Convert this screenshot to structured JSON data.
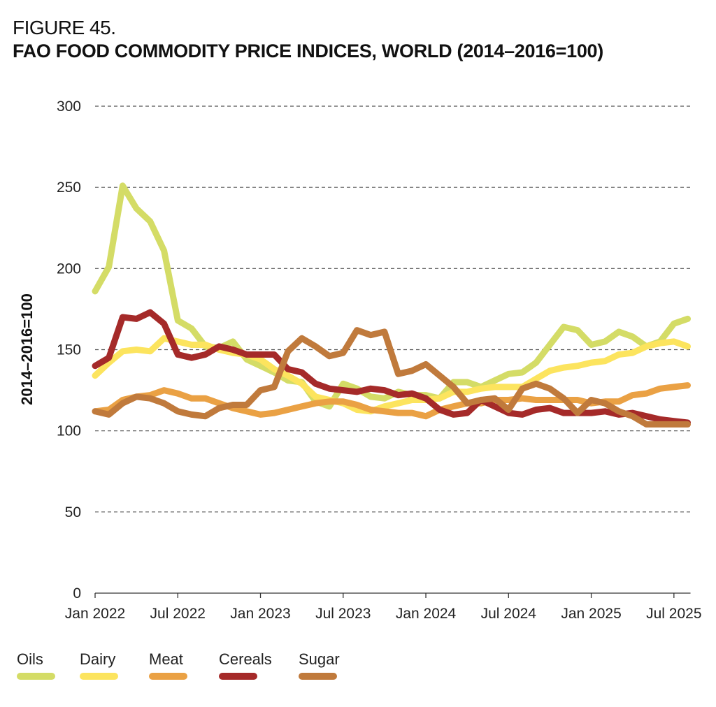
{
  "figure_label": "FIGURE 45.",
  "chart_data": {
    "type": "line",
    "title": "FAO FOOD COMMODITY PRICE INDICES, WORLD (2014–2016=100)",
    "xlabel": "",
    "ylabel": "2014–2016=100",
    "ylim": [
      0,
      300
    ],
    "yticks": [
      0,
      50,
      100,
      150,
      200,
      250,
      300
    ],
    "x_start": "Jan 2022",
    "x_end": "Aug 2025",
    "xtick_labels": [
      "Jan 2022",
      "Jul 2022",
      "Jan 2023",
      "Jul 2023",
      "Jan 2024",
      "Jul 2024",
      "Jan 2025",
      "Jul 2025"
    ],
    "grid": "horizontal dashed",
    "legend_position": "bottom",
    "series": [
      {
        "name": "Oils",
        "color": "#d4dc66",
        "values": [
          186,
          201,
          251,
          237,
          229,
          211,
          168,
          163,
          152,
          151,
          155,
          144,
          140,
          136,
          131,
          130,
          118,
          115,
          129,
          126,
          121,
          120,
          124,
          122,
          122,
          120,
          130,
          130,
          127,
          131,
          135,
          136,
          142,
          153,
          164,
          162,
          153,
          155,
          161,
          158,
          152,
          155,
          166,
          169
        ]
      },
      {
        "name": "Dairy",
        "color": "#fce45e",
        "values": [
          134,
          142,
          149,
          150,
          149,
          157,
          155,
          153,
          153,
          150,
          148,
          147,
          144,
          138,
          134,
          129,
          121,
          119,
          117,
          113,
          112,
          115,
          117,
          119,
          119,
          120,
          124,
          124,
          126,
          127,
          127,
          127,
          132,
          137,
          139,
          140,
          142,
          143,
          147,
          148,
          152,
          154,
          155,
          152
        ]
      },
      {
        "name": "Meat",
        "color": "#eaa144",
        "values": [
          112,
          113,
          119,
          121,
          122,
          125,
          123,
          120,
          120,
          117,
          114,
          112,
          110,
          111,
          113,
          115,
          117,
          118,
          118,
          116,
          113,
          112,
          111,
          111,
          109,
          113,
          115,
          117,
          117,
          119,
          119,
          120,
          119,
          119,
          119,
          119,
          117,
          118,
          118,
          122,
          123,
          126,
          127,
          128
        ]
      },
      {
        "name": "Cereals",
        "color": "#a52a29",
        "values": [
          140,
          145,
          170,
          169,
          173,
          166,
          147,
          145,
          147,
          152,
          150,
          147,
          147,
          147,
          138,
          136,
          129,
          126,
          125,
          124,
          126,
          125,
          122,
          123,
          120,
          113,
          110,
          111,
          119,
          115,
          111,
          110,
          113,
          114,
          111,
          111,
          111,
          112,
          110,
          111,
          109,
          107,
          106,
          105
        ]
      },
      {
        "name": "Sugar",
        "color": "#c07a3c",
        "values": [
          112,
          110,
          117,
          121,
          120,
          117,
          112,
          110,
          109,
          114,
          116,
          116,
          125,
          127,
          149,
          157,
          152,
          146,
          148,
          162,
          159,
          161,
          135,
          137,
          141,
          134,
          127,
          117,
          119,
          120,
          113,
          126,
          129,
          126,
          120,
          111,
          119,
          117,
          112,
          109,
          104,
          104,
          104,
          104
        ]
      }
    ]
  }
}
